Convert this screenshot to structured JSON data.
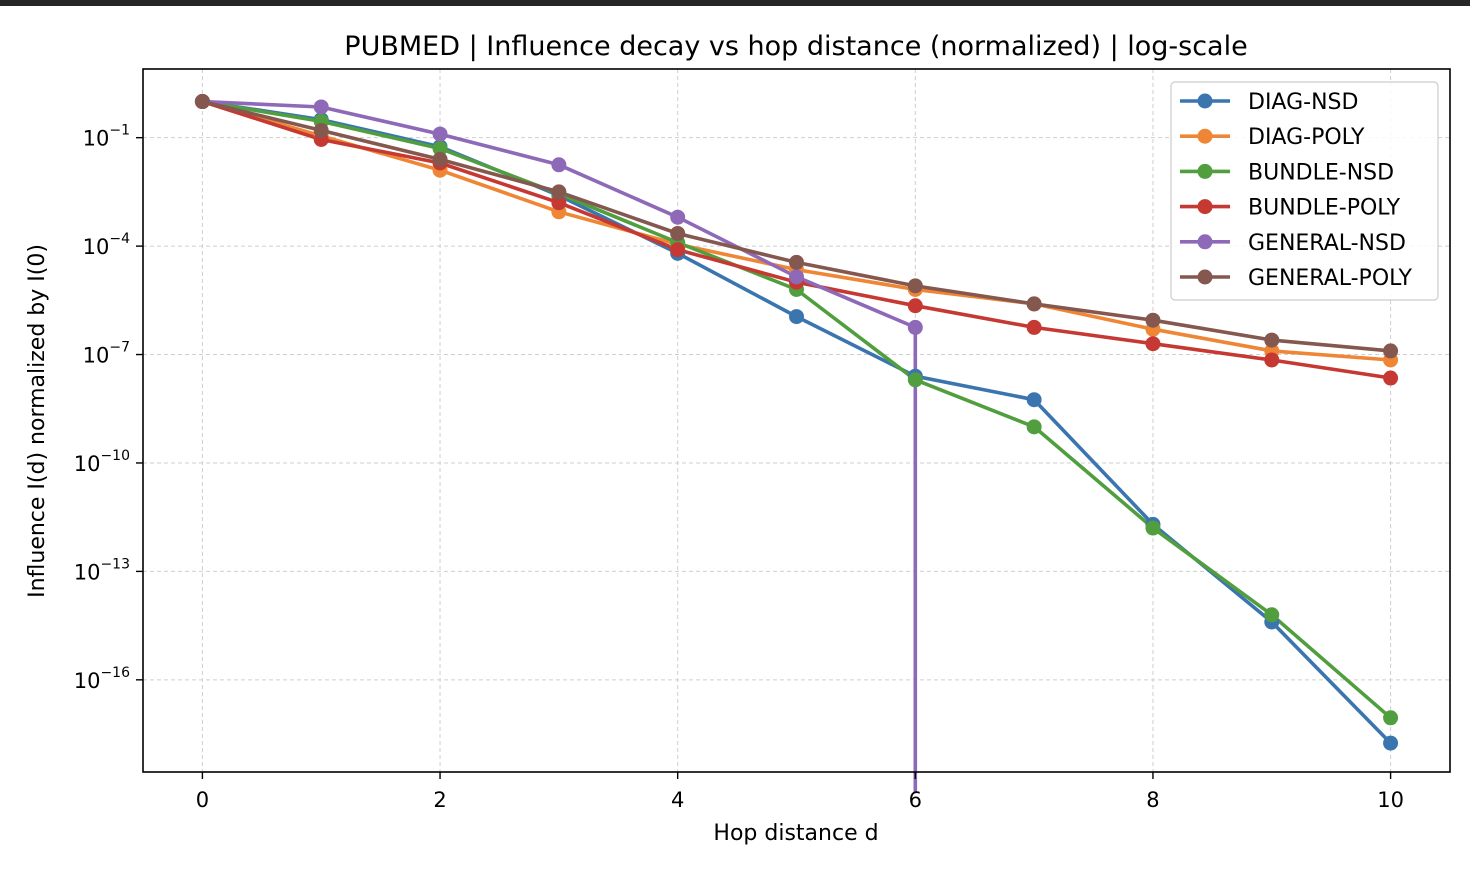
{
  "chart_data": {
    "type": "line",
    "title": "PUBMED | Influence decay vs hop distance (normalized) | log-scale",
    "xlabel": "Hop distance d",
    "ylabel": "Influence I(d) normalized by I(0)",
    "yscale": "log",
    "xlim": [
      -0.5,
      10.5
    ],
    "ylim_log10": [
      -18.55,
      0.9
    ],
    "x_ticks": [
      0,
      2,
      4,
      6,
      8,
      10
    ],
    "x_tick_labels": [
      "0",
      "2",
      "4",
      "6",
      "8",
      "10"
    ],
    "y_ticks_log10": [
      -1,
      -4,
      -7,
      -10,
      -13,
      -16
    ],
    "y_tick_labels": [
      {
        "base": "10",
        "exp": "−1"
      },
      {
        "base": "10",
        "exp": "−4"
      },
      {
        "base": "10",
        "exp": "−7"
      },
      {
        "base": "10",
        "exp": "−10"
      },
      {
        "base": "10",
        "exp": "−13"
      },
      {
        "base": "10",
        "exp": "−16"
      }
    ],
    "grid": true,
    "legend_position": "upper right",
    "x": [
      0,
      1,
      2,
      3,
      4,
      5,
      6,
      7,
      8,
      9,
      10
    ],
    "series": [
      {
        "name": "DIAG-NSD",
        "color": "#3a75af",
        "log10_values": [
          0,
          -0.5,
          -1.25,
          -2.6,
          -4.2,
          -5.95,
          -7.6,
          -8.25,
          -11.7,
          -14.4,
          -17.75
        ],
        "drop_to_zero_after": null
      },
      {
        "name": "DIAG-POLY",
        "color": "#ef8636",
        "log10_values": [
          0,
          -0.95,
          -1.9,
          -3.05,
          -3.95,
          -4.65,
          -5.2,
          -5.6,
          -6.3,
          -6.9,
          -7.15
        ],
        "drop_to_zero_after": null
      },
      {
        "name": "BUNDLE-NSD",
        "color": "#519e3e",
        "log10_values": [
          0,
          -0.55,
          -1.3,
          -2.55,
          -3.9,
          -5.2,
          -7.7,
          -9.0,
          -11.8,
          -14.2,
          -17.05
        ],
        "drop_to_zero_after": null
      },
      {
        "name": "BUNDLE-POLY",
        "color": "#c53932",
        "log10_values": [
          0,
          -1.05,
          -1.7,
          -2.8,
          -4.1,
          -5.0,
          -5.65,
          -6.25,
          -6.7,
          -7.15,
          -7.65
        ],
        "drop_to_zero_after": null
      },
      {
        "name": "GENERAL-NSD",
        "color": "#8d69b8",
        "log10_values": [
          0,
          -0.15,
          -0.9,
          -1.75,
          -3.2,
          -4.85,
          -6.25,
          null,
          null,
          null,
          null
        ],
        "drop_to_zero_after": 6
      },
      {
        "name": "GENERAL-POLY",
        "color": "#84584e",
        "log10_values": [
          0,
          -0.8,
          -1.6,
          -2.5,
          -3.65,
          -4.45,
          -5.1,
          -5.6,
          -6.05,
          -6.6,
          -6.9
        ],
        "drop_to_zero_after": null
      }
    ]
  }
}
